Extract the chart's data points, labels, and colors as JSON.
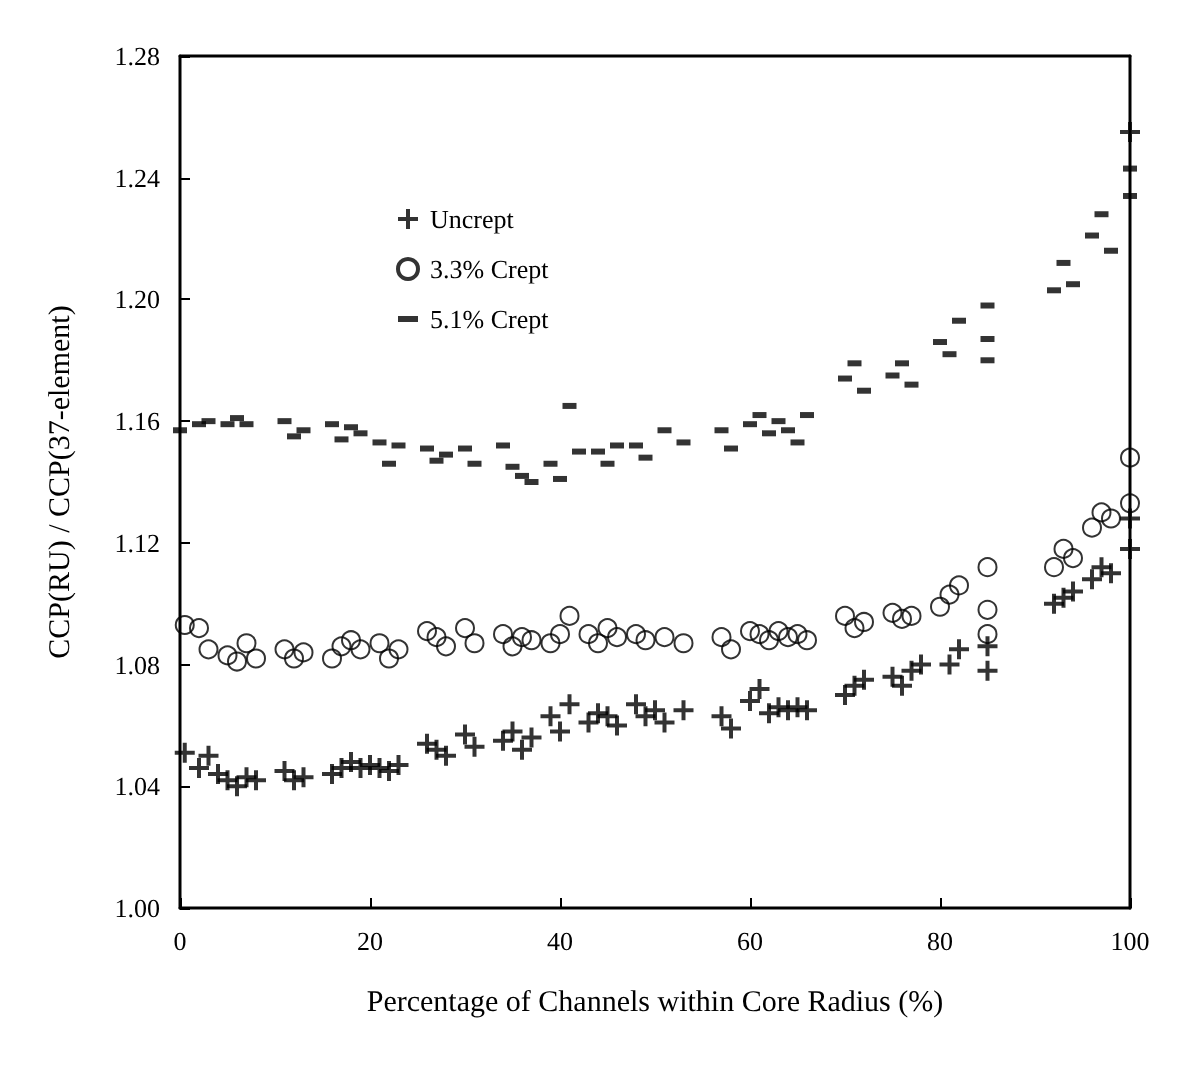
{
  "chart_data": {
    "type": "scatter",
    "xlabel": "Percentage of Channels within Core Radius (%)",
    "ylabel": "CCP(RU) / CCP(37-element)",
    "xlim": [
      0,
      100
    ],
    "xticks": [
      0,
      20,
      40,
      60,
      80,
      100
    ],
    "ylim": [
      1.0,
      1.28
    ],
    "yticks": [
      {
        "value": 1.0,
        "label": "1.00"
      },
      {
        "value": 1.04,
        "label": "1.04"
      },
      {
        "value": 1.08,
        "label": "1.08"
      },
      {
        "value": 1.12,
        "label": "1.12"
      },
      {
        "value": 1.16,
        "label": "1.16"
      },
      {
        "value": 1.2,
        "label": "1.20"
      },
      {
        "value": 1.24,
        "label": "1.24"
      },
      {
        "value": 1.28,
        "label": "1.28"
      }
    ],
    "grid": false,
    "legend": "top left",
    "series": [
      {
        "name": "Uncrept",
        "color": "#000000",
        "marker": "cross",
        "x": [
          0.5,
          2,
          3,
          4,
          5,
          6,
          7,
          8,
          11,
          12,
          13,
          16,
          17,
          18,
          19,
          20,
          21,
          22,
          23,
          26,
          27,
          28,
          30,
          31,
          34,
          35,
          36,
          37,
          39,
          40,
          41,
          43,
          44,
          45,
          46,
          48,
          49,
          50,
          51,
          53,
          57,
          58,
          60,
          61,
          62,
          63,
          64,
          65,
          66,
          70,
          71,
          72,
          75,
          76,
          77,
          78,
          81,
          82,
          85,
          85,
          92,
          93,
          94,
          96,
          97,
          98,
          100,
          100,
          100
        ],
        "values": [
          1.051,
          1.046,
          1.05,
          1.044,
          1.042,
          1.04,
          1.043,
          1.042,
          1.045,
          1.042,
          1.043,
          1.044,
          1.046,
          1.048,
          1.046,
          1.047,
          1.046,
          1.045,
          1.047,
          1.054,
          1.052,
          1.05,
          1.057,
          1.053,
          1.055,
          1.058,
          1.052,
          1.056,
          1.063,
          1.058,
          1.067,
          1.061,
          1.064,
          1.063,
          1.06,
          1.067,
          1.063,
          1.065,
          1.061,
          1.065,
          1.063,
          1.059,
          1.068,
          1.072,
          1.064,
          1.066,
          1.065,
          1.066,
          1.065,
          1.07,
          1.073,
          1.075,
          1.076,
          1.073,
          1.078,
          1.08,
          1.08,
          1.085,
          1.086,
          1.078,
          1.1,
          1.102,
          1.104,
          1.108,
          1.112,
          1.11,
          1.118,
          1.128,
          1.255
        ]
      },
      {
        "name": "3.3% Crept",
        "color": "#000000",
        "marker": "circle",
        "x": [
          0.5,
          2,
          3,
          5,
          6,
          7,
          8,
          11,
          12,
          13,
          16,
          17,
          18,
          19,
          21,
          22,
          23,
          26,
          27,
          28,
          30,
          31,
          34,
          35,
          36,
          37,
          39,
          40,
          41,
          43,
          44,
          45,
          46,
          48,
          49,
          51,
          53,
          57,
          58,
          60,
          61,
          62,
          63,
          64,
          65,
          66,
          70,
          71,
          72,
          75,
          76,
          77,
          80,
          81,
          82,
          85,
          85,
          85,
          92,
          93,
          94,
          96,
          97,
          98,
          100,
          100
        ],
        "values": [
          1.093,
          1.092,
          1.085,
          1.083,
          1.081,
          1.087,
          1.082,
          1.085,
          1.082,
          1.084,
          1.082,
          1.086,
          1.088,
          1.085,
          1.087,
          1.082,
          1.085,
          1.091,
          1.089,
          1.086,
          1.092,
          1.087,
          1.09,
          1.086,
          1.089,
          1.088,
          1.087,
          1.09,
          1.096,
          1.09,
          1.087,
          1.092,
          1.089,
          1.09,
          1.088,
          1.089,
          1.087,
          1.089,
          1.085,
          1.091,
          1.09,
          1.088,
          1.091,
          1.089,
          1.09,
          1.088,
          1.096,
          1.092,
          1.094,
          1.097,
          1.095,
          1.096,
          1.099,
          1.103,
          1.106,
          1.112,
          1.098,
          1.09,
          1.112,
          1.118,
          1.115,
          1.125,
          1.13,
          1.128,
          1.148,
          1.133
        ]
      },
      {
        "name": "5.1% Crept",
        "color": "#000000",
        "marker": "square",
        "x": [
          0,
          2,
          3,
          5,
          6,
          7,
          11,
          12,
          13,
          16,
          17,
          18,
          19,
          21,
          22,
          23,
          26,
          27,
          28,
          30,
          31,
          34,
          35,
          36,
          37,
          39,
          40,
          41,
          42,
          44,
          45,
          46,
          48,
          49,
          51,
          53,
          57,
          58,
          60,
          61,
          62,
          63,
          64,
          65,
          66,
          70,
          71,
          72,
          75,
          76,
          77,
          80,
          81,
          82,
          85,
          85,
          85,
          92,
          93,
          94,
          96,
          97,
          98,
          100,
          100
        ],
        "values": [
          1.157,
          1.159,
          1.16,
          1.159,
          1.161,
          1.159,
          1.16,
          1.155,
          1.157,
          1.159,
          1.154,
          1.158,
          1.156,
          1.153,
          1.146,
          1.152,
          1.151,
          1.147,
          1.149,
          1.151,
          1.146,
          1.152,
          1.145,
          1.142,
          1.14,
          1.146,
          1.141,
          1.165,
          1.15,
          1.15,
          1.146,
          1.152,
          1.152,
          1.148,
          1.157,
          1.153,
          1.157,
          1.151,
          1.159,
          1.162,
          1.156,
          1.16,
          1.157,
          1.153,
          1.162,
          1.174,
          1.179,
          1.17,
          1.175,
          1.179,
          1.172,
          1.186,
          1.182,
          1.193,
          1.198,
          1.18,
          1.187,
          1.203,
          1.212,
          1.205,
          1.221,
          1.228,
          1.216,
          1.234,
          1.243
        ]
      }
    ]
  }
}
